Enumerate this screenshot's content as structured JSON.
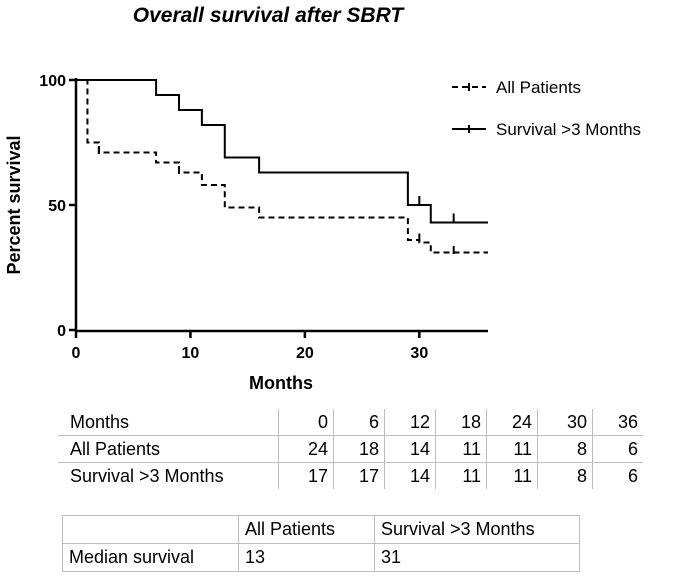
{
  "chart_data": {
    "type": "line",
    "subtype": "kaplan-meier",
    "title": "Overall survival after SBRT",
    "xlabel": "Months",
    "ylabel": "Percent survival",
    "xlim": [
      0,
      36
    ],
    "ylim": [
      0,
      100
    ],
    "xticks": [
      0,
      10,
      20,
      30
    ],
    "yticks": [
      0,
      50,
      100
    ],
    "legend_position": "top-right",
    "series": [
      {
        "name": "All Patients",
        "style": "dashed",
        "steps": [
          [
            0,
            100
          ],
          [
            1,
            75
          ],
          [
            2,
            71
          ],
          [
            7,
            67
          ],
          [
            9,
            63
          ],
          [
            11,
            58
          ],
          [
            13,
            49
          ],
          [
            16,
            45
          ],
          [
            29,
            36
          ],
          [
            30,
            35
          ],
          [
            31,
            31
          ],
          [
            36,
            31
          ]
        ],
        "censored": [
          [
            2,
            72
          ],
          [
            9,
            64
          ],
          [
            30,
            37
          ],
          [
            33,
            32
          ]
        ]
      },
      {
        "name": "Survival >3 Months",
        "style": "solid",
        "steps": [
          [
            0,
            100
          ],
          [
            7,
            94
          ],
          [
            9,
            88
          ],
          [
            11,
            82
          ],
          [
            13,
            69
          ],
          [
            16,
            63
          ],
          [
            29,
            50
          ],
          [
            31,
            43
          ],
          [
            36,
            43
          ]
        ],
        "censored": [
          [
            9,
            91
          ],
          [
            30,
            52
          ],
          [
            33,
            45
          ]
        ]
      }
    ]
  },
  "risk_table": {
    "header_label": "Months",
    "timepoints": [
      "0",
      "6",
      "12",
      "18",
      "24",
      "30",
      "36"
    ],
    "rows": [
      {
        "label": "All Patients",
        "values": [
          "24",
          "18",
          "14",
          "11",
          "11",
          "8",
          "6"
        ]
      },
      {
        "label": "Survival >3 Months",
        "values": [
          "17",
          "17",
          "14",
          "11",
          "11",
          "8",
          "6"
        ]
      }
    ]
  },
  "median_table": {
    "columns": [
      "",
      "All Patients",
      "Survival >3 Months"
    ],
    "row_label": "Median survival",
    "values": [
      "13",
      "31"
    ]
  }
}
